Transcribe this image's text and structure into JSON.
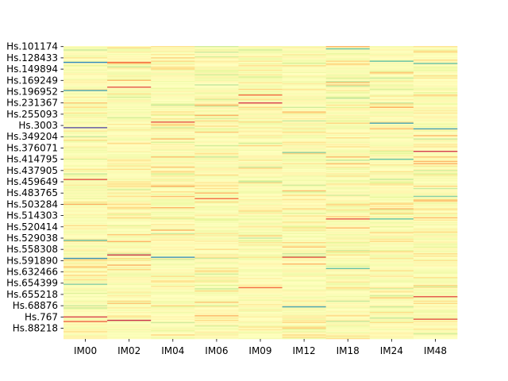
{
  "chart_data": {
    "type": "heatmap",
    "colormap": "Spectral",
    "x_categories": [
      "IM00",
      "IM02",
      "IM04",
      "IM06",
      "IM09",
      "IM12",
      "IM18",
      "IM24",
      "IM48"
    ],
    "y_tick_labels": [
      "Hs.101174",
      "Hs.128433",
      "Hs.149894",
      "Hs.169249",
      "Hs.196952",
      "Hs.231367",
      "Hs.255093",
      "Hs.3003",
      "Hs.349204",
      "Hs.376071",
      "Hs.414795",
      "Hs.437905",
      "Hs.459649",
      "Hs.483765",
      "Hs.503284",
      "Hs.514303",
      "Hs.520414",
      "Hs.529038",
      "Hs.558308",
      "Hs.591890",
      "Hs.632466",
      "Hs.654399",
      "Hs.655218",
      "Hs.68876",
      "Hs.767",
      "Hs.88218"
    ],
    "n_rows": 260,
    "value_range": [
      0,
      1
    ],
    "background_value": 0.52,
    "colorbar": false,
    "highlights": [
      {
        "col": 0,
        "row": 14,
        "value": 0.9
      },
      {
        "col": 0,
        "row": 39,
        "value": 0.85
      },
      {
        "col": 0,
        "row": 72,
        "value": 1.0
      },
      {
        "col": 0,
        "row": 118,
        "value": 0.15
      },
      {
        "col": 0,
        "row": 172,
        "value": 0.8
      },
      {
        "col": 0,
        "row": 188,
        "value": 0.88
      },
      {
        "col": 0,
        "row": 211,
        "value": 0.75
      },
      {
        "col": 0,
        "row": 240,
        "value": 0.12
      },
      {
        "col": 0,
        "row": 244,
        "value": 0.18
      },
      {
        "col": 1,
        "row": 14,
        "value": 0.2
      },
      {
        "col": 1,
        "row": 36,
        "value": 0.15
      },
      {
        "col": 1,
        "row": 185,
        "value": 0.1
      },
      {
        "col": 1,
        "row": 243,
        "value": 0.08
      },
      {
        "col": 2,
        "row": 67,
        "value": 0.15
      },
      {
        "col": 2,
        "row": 187,
        "value": 0.88
      },
      {
        "col": 3,
        "row": 135,
        "value": 0.2
      },
      {
        "col": 4,
        "row": 50,
        "value": 0.1
      },
      {
        "col": 4,
        "row": 43,
        "value": 0.2
      },
      {
        "col": 4,
        "row": 214,
        "value": 0.2
      },
      {
        "col": 5,
        "row": 94,
        "value": 0.75
      },
      {
        "col": 5,
        "row": 187,
        "value": 0.15
      },
      {
        "col": 5,
        "row": 231,
        "value": 0.85
      },
      {
        "col": 6,
        "row": 2,
        "value": 0.8
      },
      {
        "col": 6,
        "row": 153,
        "value": 0.15
      },
      {
        "col": 6,
        "row": 197,
        "value": 0.8
      },
      {
        "col": 7,
        "row": 13,
        "value": 0.8
      },
      {
        "col": 7,
        "row": 68,
        "value": 0.85
      },
      {
        "col": 7,
        "row": 100,
        "value": 0.8
      },
      {
        "col": 7,
        "row": 153,
        "value": 0.8
      },
      {
        "col": 8,
        "row": 15,
        "value": 0.8
      },
      {
        "col": 8,
        "row": 73,
        "value": 0.85
      },
      {
        "col": 8,
        "row": 93,
        "value": 0.1
      },
      {
        "col": 8,
        "row": 133,
        "value": 0.75
      },
      {
        "col": 8,
        "row": 222,
        "value": 0.15
      },
      {
        "col": 8,
        "row": 242,
        "value": 0.15
      }
    ]
  }
}
